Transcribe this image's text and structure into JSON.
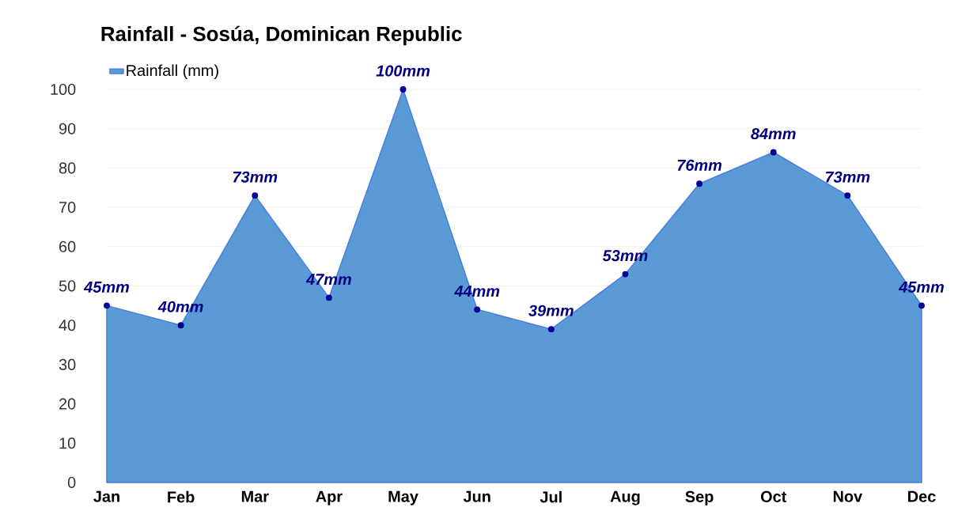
{
  "chart_data": {
    "type": "area",
    "title": "Rainfall - Sosúa, Dominican Republic",
    "categories": [
      "Jan",
      "Feb",
      "Mar",
      "Apr",
      "May",
      "Jun",
      "Jul",
      "Aug",
      "Sep",
      "Oct",
      "Nov",
      "Dec"
    ],
    "series": [
      {
        "name": "Rainfall (mm)",
        "color": "#5b9bd5",
        "values": [
          45,
          40,
          73,
          47,
          100,
          44,
          39,
          53,
          76,
          84,
          73,
          45
        ],
        "value_labels": [
          "45mm",
          "40mm",
          "73mm",
          "47mm",
          "100mm",
          "44mm",
          "39mm",
          "53mm",
          "76mm",
          "84mm",
          "73mm",
          "45mm"
        ]
      }
    ],
    "ylim": [
      0,
      100
    ],
    "yticks": [
      0,
      10,
      20,
      30,
      40,
      50,
      60,
      70,
      80,
      90,
      100
    ],
    "grid": "y",
    "legend": "top left",
    "marker": "circle"
  }
}
